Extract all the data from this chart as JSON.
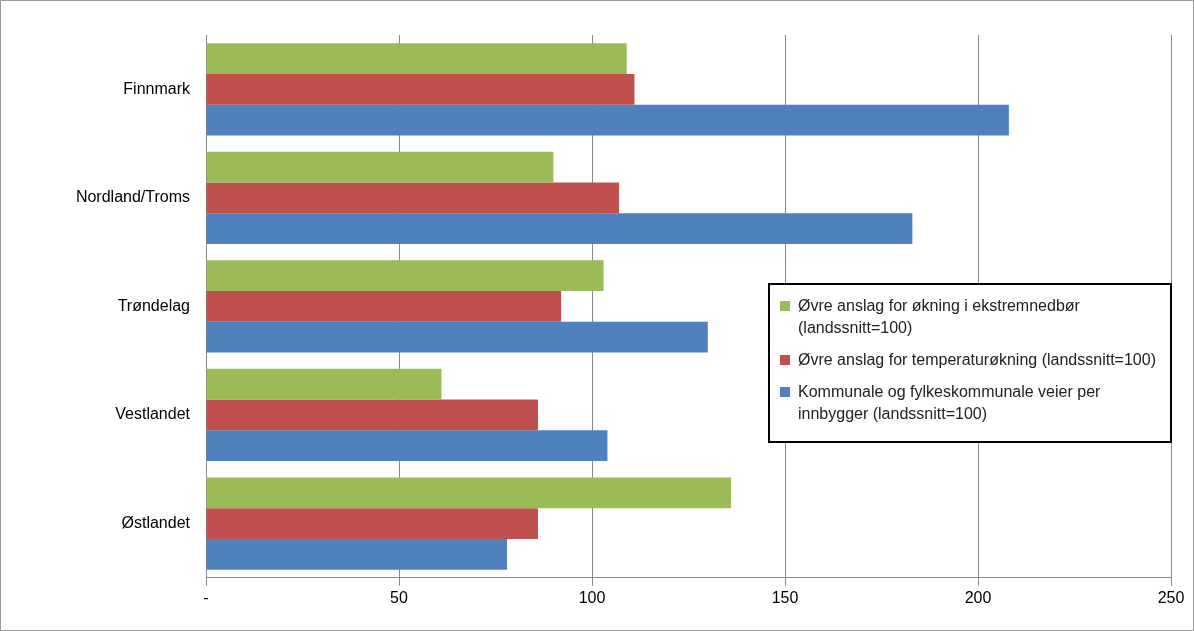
{
  "chart_data": {
    "type": "bar",
    "orientation": "horizontal",
    "categories": [
      "Finnmark",
      "Nordland/Troms",
      "Trøndelag",
      "Vestlandet",
      "Østlandet"
    ],
    "series": [
      {
        "name": "Øvre anslag for økning i ekstremnedbør (landssnitt=100)",
        "color": "#9bbb59",
        "values": [
          109,
          90,
          103,
          61,
          136
        ]
      },
      {
        "name": "Øvre anslag for temperaturøkning (landssnitt=100)",
        "color": "#c0504d",
        "values": [
          111,
          107,
          92,
          86,
          86
        ]
      },
      {
        "name": "Kommunale og fylkeskommunale veier per innbygger (landssnitt=100)",
        "color": "#4f81bd",
        "values": [
          208,
          183,
          130,
          104,
          78
        ]
      }
    ],
    "xlim": [
      0,
      250
    ],
    "xticks": [
      {
        "value": 0,
        "label": "-"
      },
      50,
      100,
      150,
      200,
      250
    ],
    "grid": "x",
    "legend": "right"
  }
}
